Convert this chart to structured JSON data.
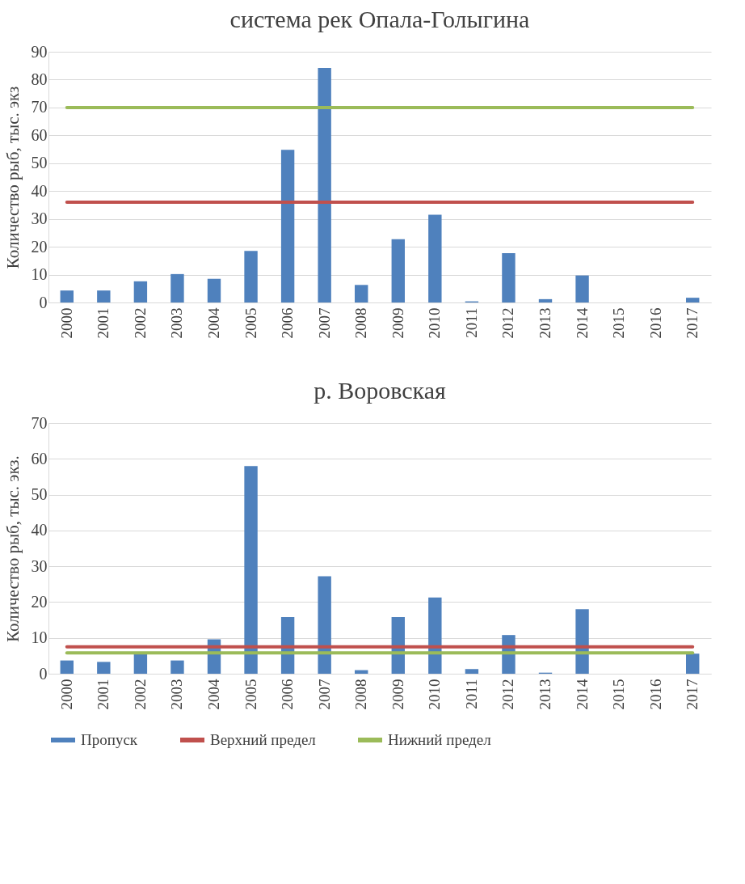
{
  "chart_data": [
    {
      "type": "bar",
      "title": "система рек Опала-Голыгина",
      "ylabel": "Количество рыб, тыс. экз",
      "categories": [
        "2000",
        "2001",
        "2002",
        "2003",
        "2004",
        "2005",
        "2006",
        "2007",
        "2008",
        "2009",
        "2010",
        "2011",
        "2012",
        "2013",
        "2014",
        "2015",
        "2016",
        "2017"
      ],
      "series": [
        {
          "color": "#4f81bd",
          "values": [
            4.3,
            4.3,
            7.6,
            10.2,
            8.5,
            18.5,
            54.8,
            84.2,
            6.3,
            22.7,
            31.5,
            0.4,
            17.7,
            1.2,
            9.7,
            null,
            null,
            1.7
          ]
        },
        {
          "type": "line",
          "color": "#c0504d",
          "values": [
            36,
            36,
            36,
            36,
            36,
            36,
            36,
            36,
            36,
            36,
            36,
            36,
            36,
            36,
            36,
            36,
            36,
            36
          ]
        },
        {
          "type": "line",
          "color": "#9bbb59",
          "values": [
            70,
            70,
            70,
            70,
            70,
            70,
            70,
            70,
            70,
            70,
            70,
            70,
            70,
            70,
            70,
            70,
            70,
            70
          ]
        }
      ],
      "ylim": [
        0,
        90
      ],
      "yticks": [
        0,
        10,
        20,
        30,
        40,
        50,
        60,
        70,
        80,
        90
      ],
      "grid": "y",
      "legend": false
    },
    {
      "type": "bar",
      "title": "р. Воровская",
      "ylabel": "Количество рыб, тыс. экз.",
      "categories": [
        "2000",
        "2001",
        "2002",
        "2003",
        "2004",
        "2005",
        "2006",
        "2007",
        "2008",
        "2009",
        "2010",
        "2011",
        "2012",
        "2013",
        "2014",
        "2015",
        "2016",
        "2017"
      ],
      "series": [
        {
          "name": "Пропуск",
          "color": "#4f81bd",
          "values": [
            3.7,
            3.3,
            6,
            3.7,
            9.6,
            58,
            15.8,
            27.2,
            1,
            15.8,
            21.3,
            1.3,
            10.8,
            0.3,
            18,
            null,
            null,
            5.6
          ]
        },
        {
          "name": "Верхний предел",
          "type": "line",
          "color": "#c0504d",
          "values": [
            7.5,
            7.5,
            7.5,
            7.5,
            7.5,
            7.5,
            7.5,
            7.5,
            7.5,
            7.5,
            7.5,
            7.5,
            7.5,
            7.5,
            7.5,
            7.5,
            7.5,
            7.5
          ]
        },
        {
          "name": "Нижний предел",
          "type": "line",
          "color": "#9bbb59",
          "values": [
            5.8,
            5.8,
            5.8,
            5.8,
            5.8,
            5.8,
            5.8,
            5.8,
            5.8,
            5.8,
            5.8,
            5.8,
            5.8,
            5.8,
            5.8,
            5.8,
            5.8,
            5.8
          ]
        }
      ],
      "ylim": [
        0,
        70
      ],
      "yticks": [
        0,
        10,
        20,
        30,
        40,
        50,
        60,
        70
      ],
      "grid": "y",
      "legend": "bottom"
    }
  ]
}
